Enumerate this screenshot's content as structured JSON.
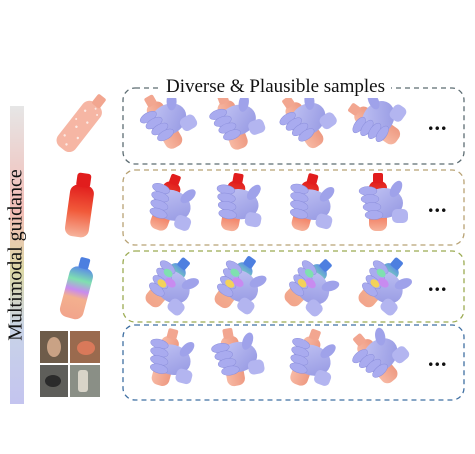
{
  "title": "Diverse & Plausible samples",
  "side_label": "Multimodal guidance",
  "ellipsis": "...",
  "colors": {
    "bottle": "#f4a58f",
    "hand": "#a7a9ec",
    "hand_dark": "#8c8fdc",
    "contact": "#e8262a",
    "row_border_1": "#5c6c72",
    "row_border_2": "#b8a274",
    "row_border_3": "#9bab52",
    "row_border_4": "#3f6fa2"
  },
  "rows": [
    {
      "guidance": "point-cloud-bottle",
      "samples": 4
    },
    {
      "guidance": "contact-map-bottle",
      "samples": 4
    },
    {
      "guidance": "part-segmentation-bottle",
      "samples": 4
    },
    {
      "guidance": "reference-photos",
      "samples": 4
    }
  ]
}
